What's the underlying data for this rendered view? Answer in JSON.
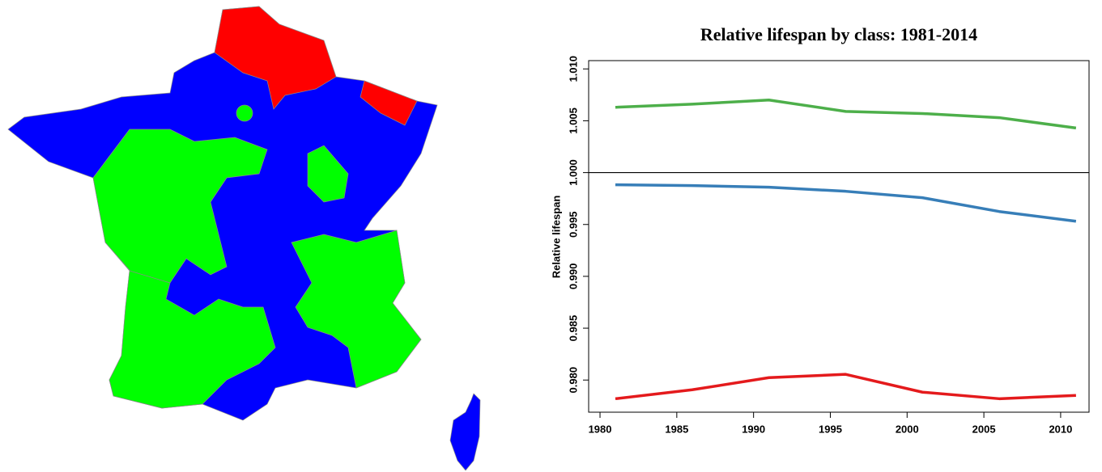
{
  "chart_data": {
    "type": "line",
    "title": "Relative lifespan by class: 1981-2014",
    "y_label": "Relative lifespan",
    "x": [
      1981,
      1986,
      1991,
      1996,
      2001,
      2006,
      2011
    ],
    "series": [
      {
        "color": "#4daf4a",
        "values": [
          1.0063,
          1.0066,
          1.007,
          1.0059,
          1.0057,
          1.0053,
          1.0043
        ]
      },
      {
        "color": "#377eb8",
        "values": [
          0.99883,
          0.99875,
          0.99859,
          0.9982,
          0.99758,
          0.99625,
          0.99531
        ]
      },
      {
        "color": "#e41a1c",
        "values": [
          0.9782,
          0.97906,
          0.98023,
          0.98055,
          0.97883,
          0.9782,
          0.97852
        ]
      }
    ],
    "xlim": [
      1979.26,
      2011.85
    ],
    "xticks": [
      1980,
      1985,
      1990,
      1995,
      2000,
      2005,
      2010
    ],
    "ylim": [
      0.9769,
      1.0108
    ],
    "yticks": [
      {
        "value": 0.98,
        "label": "0.980"
      },
      {
        "value": 0.985,
        "label": "0.985"
      },
      {
        "value": 0.99,
        "label": "0.990"
      },
      {
        "value": 0.995,
        "label": "0.995"
      },
      {
        "value": 1.0,
        "label": "1.000"
      },
      {
        "value": 1.005,
        "label": "1.005"
      },
      {
        "value": 1.01,
        "label": "1.010"
      }
    ],
    "reference_line": 1.0,
    "grid": false
  }
}
